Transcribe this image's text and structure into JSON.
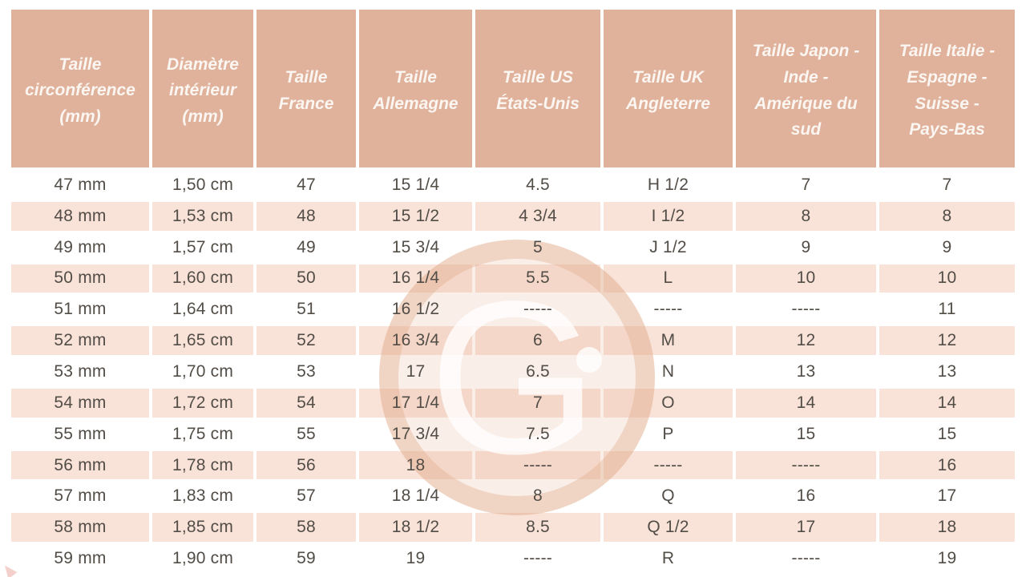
{
  "table": {
    "columns": [
      "Taille circonférence (mm)",
      "Diamètre intérieur (mm)",
      "Taille France",
      "Taille Allemagne",
      "Taille US États-Unis",
      "Taille UK Angleterre",
      "Taille Japon - Inde - Amérique du sud",
      "Taille Italie - Espagne - Suisse - Pays-Bas"
    ],
    "rows": [
      [
        "47 mm",
        "1,50 cm",
        "47",
        "15 1/4",
        "4.5",
        "H 1/2",
        "7",
        "7"
      ],
      [
        "48 mm",
        "1,53 cm",
        "48",
        "15 1/2",
        "4 3/4",
        "I 1/2",
        "8",
        "8"
      ],
      [
        "49 mm",
        "1,57 cm",
        "49",
        "15 3/4",
        "5",
        "J 1/2",
        "9",
        "9"
      ],
      [
        "50 mm",
        "1,60 cm",
        "50",
        "16 1/4",
        "5.5",
        "L",
        "10",
        "10"
      ],
      [
        "51 mm",
        "1,64 cm",
        "51",
        "16 1/2",
        "-----",
        "-----",
        "-----",
        "11"
      ],
      [
        "52 mm",
        "1,65 cm",
        "52",
        "16 3/4",
        "6",
        "M",
        "12",
        "12"
      ],
      [
        "53 mm",
        "1,70 cm",
        "53",
        "17",
        "6.5",
        "N",
        "13",
        "13"
      ],
      [
        "54 mm",
        "1,72 cm",
        "54",
        "17 1/4",
        "7",
        "O",
        "14",
        "14"
      ],
      [
        "55 mm",
        "1,75 cm",
        "55",
        "17 3/4",
        "7.5",
        "P",
        "15",
        "15"
      ],
      [
        "56 mm",
        "1,78 cm",
        "56",
        "18",
        "-----",
        "-----",
        "-----",
        "16"
      ],
      [
        "57 mm",
        "1,83 cm",
        "57",
        "18 1/4",
        "8",
        "Q",
        "16",
        "17"
      ],
      [
        "58 mm",
        "1,85 cm",
        "58",
        "18 1/2",
        "8.5",
        "Q 1/2",
        "17",
        "18"
      ],
      [
        "59 mm",
        "1,90 cm",
        "59",
        "19",
        "-----",
        "R",
        "-----",
        "19"
      ]
    ]
  },
  "watermark": {
    "letter": "G"
  },
  "colors": {
    "header_bg": "#E0B19B",
    "stripe_bg": "#F9E3D8",
    "text": "#524D47",
    "header_text": "#FBF6F1",
    "watermark_tint": "#E2A88A"
  }
}
